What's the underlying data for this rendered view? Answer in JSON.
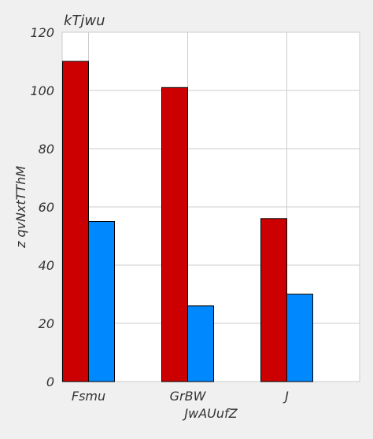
{
  "chart_data": {
    "type": "bar",
    "title": "kTjwu",
    "xlabel": "JwAUufZ",
    "ylabel": "z  qvNxtTThM",
    "categories": [
      "Fsmu",
      "GrBW",
      "J"
    ],
    "series": [
      {
        "values": [
          110,
          101,
          56
        ],
        "color": "#cc0000"
      },
      {
        "values": [
          55,
          26,
          30
        ],
        "color": "#0088ff"
      }
    ],
    "ylim": [
      0,
      120
    ],
    "yticks": [
      0,
      20,
      40,
      60,
      80,
      100,
      120
    ],
    "grid": true,
    "legend": "none"
  },
  "colors": {
    "background": "#f0f0f0",
    "plot_background": "#ffffff",
    "grid": "#cccccc",
    "bar_edge": "#000000"
  }
}
